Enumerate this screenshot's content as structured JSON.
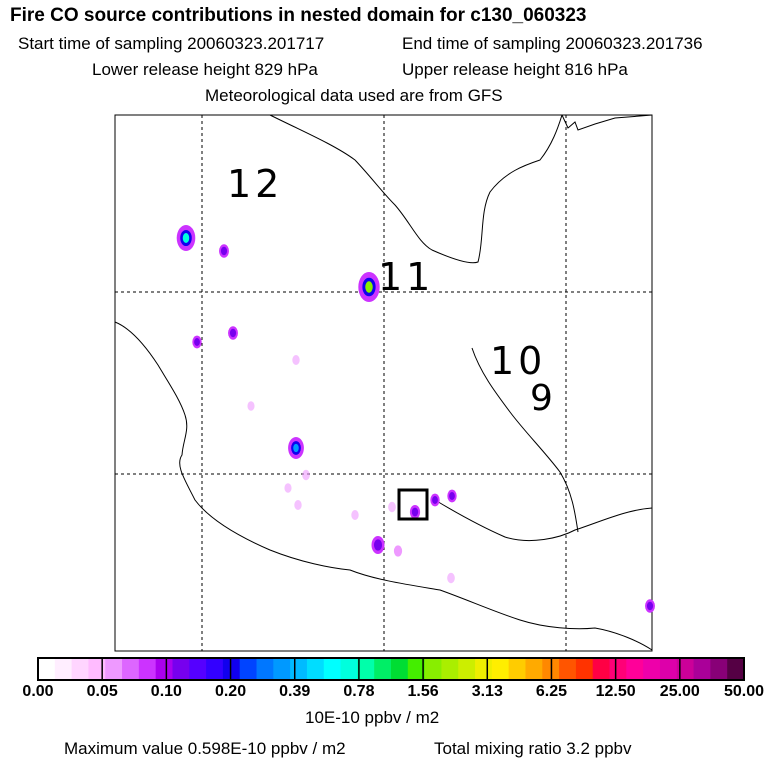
{
  "header": {
    "title": "Fire CO source contributions in nested domain for c130_060323",
    "start_time": "Start time of sampling 20060323.201717",
    "end_time": "End time of sampling 20060323.201736",
    "lower_release": "Lower release height  829 hPa",
    "upper_release": "Upper release height  816 hPa",
    "met_data": "Meteorological data used are from GFS"
  },
  "map": {
    "zone_labels": [
      "12",
      "11",
      "10",
      "9"
    ],
    "hotspots": [
      {
        "level": 0.45
      },
      {
        "level": 0.14
      },
      {
        "level": 0.55
      },
      {
        "level": 0.14
      },
      {
        "level": 0.12
      },
      {
        "level": 0.05
      },
      {
        "level": 0.04
      },
      {
        "level": 0.35
      },
      {
        "level": 0.06
      },
      {
        "level": 0.04
      },
      {
        "level": 0.05
      },
      {
        "level": 0.15
      },
      {
        "level": 0.12
      },
      {
        "level": 0.05
      },
      {
        "level": 0.25
      },
      {
        "level": 0.12
      },
      {
        "level": 0.08
      },
      {
        "level": 0.06
      },
      {
        "level": 0.06
      },
      {
        "level": 0.14
      }
    ],
    "colors": {
      "coast": "#000000",
      "grid": "#000000",
      "marker": "#000000"
    }
  },
  "colorbar": {
    "ticks": [
      "0.00",
      "0.05",
      "0.10",
      "0.20",
      "0.39",
      "0.78",
      "1.56",
      "3.13",
      "6.25",
      "12.50",
      "25.00",
      "50.00"
    ],
    "colors": [
      "#ffffff",
      "#ffeeff",
      "#ffd5ff",
      "#ffbbff",
      "#ee99ff",
      "#dd66ff",
      "#cc33ff",
      "#aa00ee",
      "#7700ee",
      "#5500ff",
      "#3300ff",
      "#1100ee",
      "#0044ff",
      "#0077ff",
      "#0099ff",
      "#00bbff",
      "#00ddff",
      "#00ffff",
      "#00ffdd",
      "#00ffaa",
      "#00ee66",
      "#00dd33",
      "#44ee00",
      "#88ee00",
      "#aaee00",
      "#ccee00",
      "#eeee00",
      "#ffee00",
      "#ffcc00",
      "#ffaa00",
      "#ff8800",
      "#ff5500",
      "#ff3300",
      "#ff0044",
      "#ff0077",
      "#ff0099",
      "#ee00aa",
      "#dd00aa",
      "#cc0099",
      "#aa0099",
      "#880077",
      "#550044"
    ],
    "units": "10E-10 ppbv / m2"
  },
  "footer": {
    "max_value": "Maximum value  0.598E-10 ppbv / m2",
    "total_mixing": "Total mixing ratio        3.2 ppbv"
  }
}
